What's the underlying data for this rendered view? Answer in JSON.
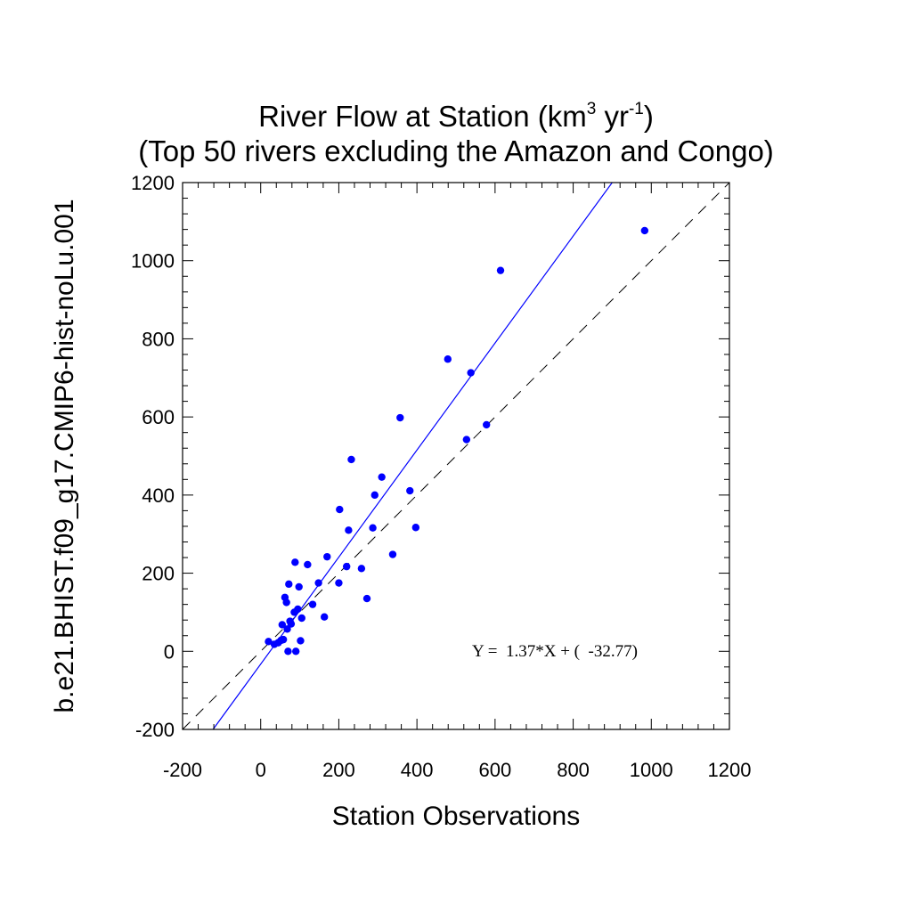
{
  "chart_data": {
    "type": "scatter",
    "title_line1_main": "River Flow at Station (km",
    "title_line1_sup1": "3",
    "title_line1_mid": " yr",
    "title_line1_sup2": "-1",
    "title_line1_end": ")",
    "subtitle": "(Top 50 rivers excluding the Amazon and Congo)",
    "xlabel": "Station Observations",
    "ylabel": "b.e21.BHIST.f09_g17.CMIP6-hist-noLu.001",
    "xlim": [
      -200,
      1200
    ],
    "ylim": [
      -200,
      1200
    ],
    "major_ticks": [
      -200,
      0,
      200,
      400,
      600,
      800,
      1000,
      1200
    ],
    "minor_tick_step": 40,
    "tick_labels": [
      "-200",
      "0",
      "200",
      "400",
      "600",
      "800",
      "1000",
      "1200"
    ],
    "grid": false,
    "point_color": "#0000ff",
    "regression": {
      "slope": 1.37,
      "intercept": -32.77,
      "color": "#0000ff",
      "label": "Y =  1.37*X + (  -32.77)"
    },
    "one_to_one_line": {
      "style": "dashed",
      "color": "#000000"
    },
    "points": [
      {
        "x": 20,
        "y": 25
      },
      {
        "x": 35,
        "y": 18
      },
      {
        "x": 45,
        "y": 22
      },
      {
        "x": 52,
        "y": 28
      },
      {
        "x": 55,
        "y": 68
      },
      {
        "x": 58,
        "y": 30
      },
      {
        "x": 62,
        "y": 138
      },
      {
        "x": 66,
        "y": 125
      },
      {
        "x": 68,
        "y": 57
      },
      {
        "x": 70,
        "y": 0
      },
      {
        "x": 72,
        "y": 172
      },
      {
        "x": 75,
        "y": 77
      },
      {
        "x": 78,
        "y": 70
      },
      {
        "x": 86,
        "y": 100
      },
      {
        "x": 88,
        "y": 228
      },
      {
        "x": 90,
        "y": 0
      },
      {
        "x": 95,
        "y": 108
      },
      {
        "x": 98,
        "y": 165
      },
      {
        "x": 102,
        "y": 27
      },
      {
        "x": 105,
        "y": 85
      },
      {
        "x": 120,
        "y": 222
      },
      {
        "x": 133,
        "y": 120
      },
      {
        "x": 148,
        "y": 175
      },
      {
        "x": 163,
        "y": 88
      },
      {
        "x": 170,
        "y": 242
      },
      {
        "x": 200,
        "y": 175
      },
      {
        "x": 202,
        "y": 363
      },
      {
        "x": 220,
        "y": 217
      },
      {
        "x": 225,
        "y": 310
      },
      {
        "x": 232,
        "y": 491
      },
      {
        "x": 258,
        "y": 212
      },
      {
        "x": 272,
        "y": 135
      },
      {
        "x": 287,
        "y": 316
      },
      {
        "x": 292,
        "y": 400
      },
      {
        "x": 310,
        "y": 446
      },
      {
        "x": 338,
        "y": 248
      },
      {
        "x": 357,
        "y": 598
      },
      {
        "x": 382,
        "y": 411
      },
      {
        "x": 397,
        "y": 317
      },
      {
        "x": 479,
        "y": 748
      },
      {
        "x": 527,
        "y": 542
      },
      {
        "x": 538,
        "y": 713
      },
      {
        "x": 578,
        "y": 580
      },
      {
        "x": 614,
        "y": 975
      },
      {
        "x": 983,
        "y": 1077
      }
    ]
  }
}
